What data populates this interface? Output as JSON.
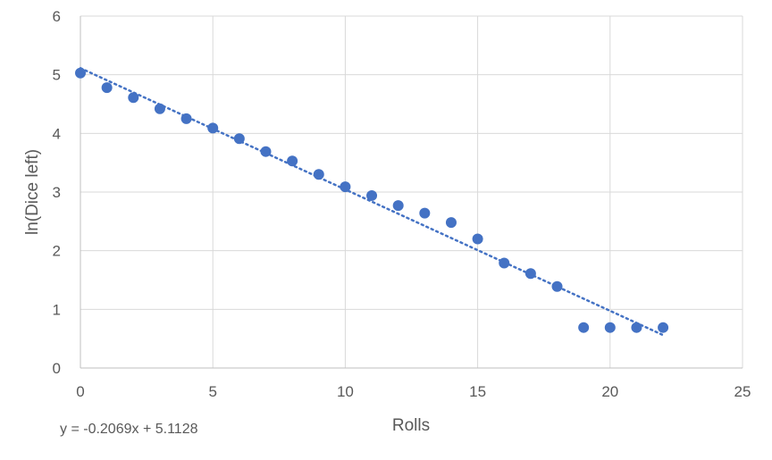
{
  "chart_data": {
    "type": "scatter",
    "title": "",
    "xlabel": "Rolls",
    "ylabel": "ln(Dice left)",
    "xlim": [
      0,
      25
    ],
    "ylim": [
      0,
      6
    ],
    "x_ticks": [
      "0",
      "5",
      "10",
      "15",
      "20",
      "25"
    ],
    "y_ticks": [
      "0",
      "1",
      "2",
      "3",
      "4",
      "5",
      "6"
    ],
    "grid": true,
    "legend": "none",
    "marker_color": "#4472C4",
    "trendline_color": "#4472C4",
    "series": [
      {
        "x": [
          0,
          1,
          2,
          3,
          4,
          5,
          6,
          7,
          8,
          9,
          10,
          11,
          12,
          13,
          14,
          15,
          16,
          17,
          18,
          19,
          20,
          21,
          22
        ],
        "y": [
          5.03,
          4.78,
          4.61,
          4.42,
          4.25,
          4.09,
          3.91,
          3.69,
          3.53,
          3.3,
          3.09,
          2.94,
          2.77,
          2.64,
          2.48,
          2.2,
          1.79,
          1.61,
          1.39,
          0.69,
          0.69,
          0.69,
          0.69
        ]
      }
    ],
    "trendline": {
      "type": "linear",
      "slope": -0.2069,
      "intercept": 5.1128,
      "x_range": [
        0,
        22
      ],
      "equation_label": "y = -0.2069x + 5.1128"
    }
  }
}
